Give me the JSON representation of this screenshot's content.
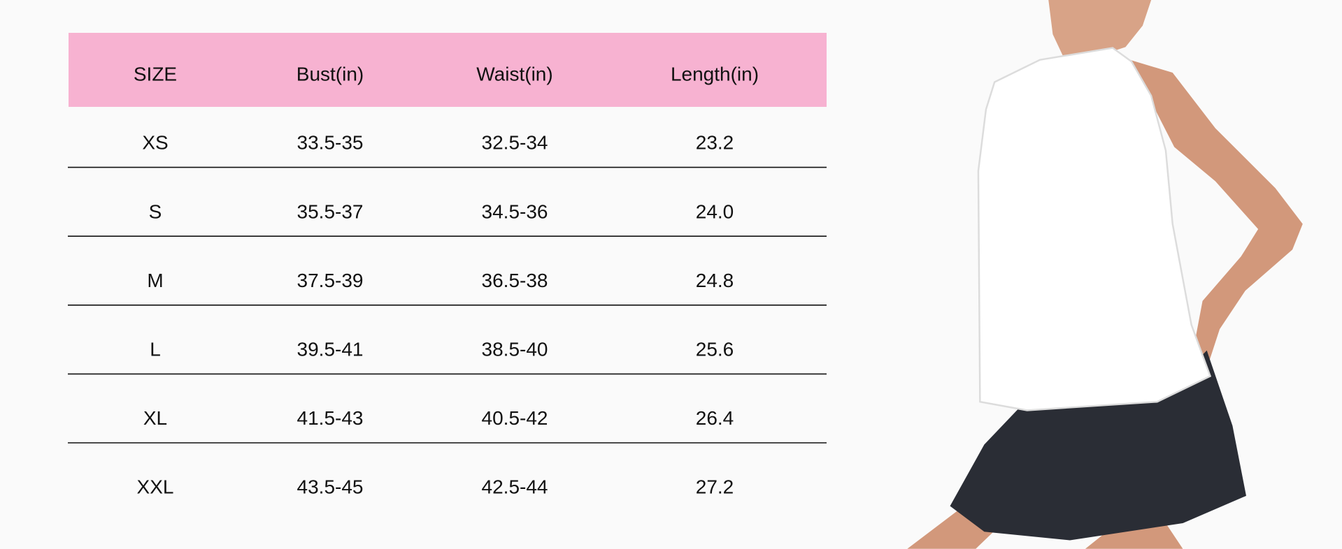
{
  "table": {
    "headers": [
      "SIZE",
      "Bust(in)",
      "Waist(in)",
      "Length(in)"
    ],
    "rows": [
      [
        "XS",
        "33.5-35",
        "32.5-34",
        "23.2"
      ],
      [
        "S",
        "35.5-37",
        "34.5-36",
        "24.0"
      ],
      [
        "M",
        "37.5-39",
        "36.5-38",
        "24.8"
      ],
      [
        "L",
        "39.5-41",
        "38.5-40",
        "25.6"
      ],
      [
        "XL",
        "41.5-43",
        "40.5-42",
        "26.4"
      ],
      [
        "XXL",
        "43.5-45",
        "42.5-44",
        "27.2"
      ]
    ]
  }
}
